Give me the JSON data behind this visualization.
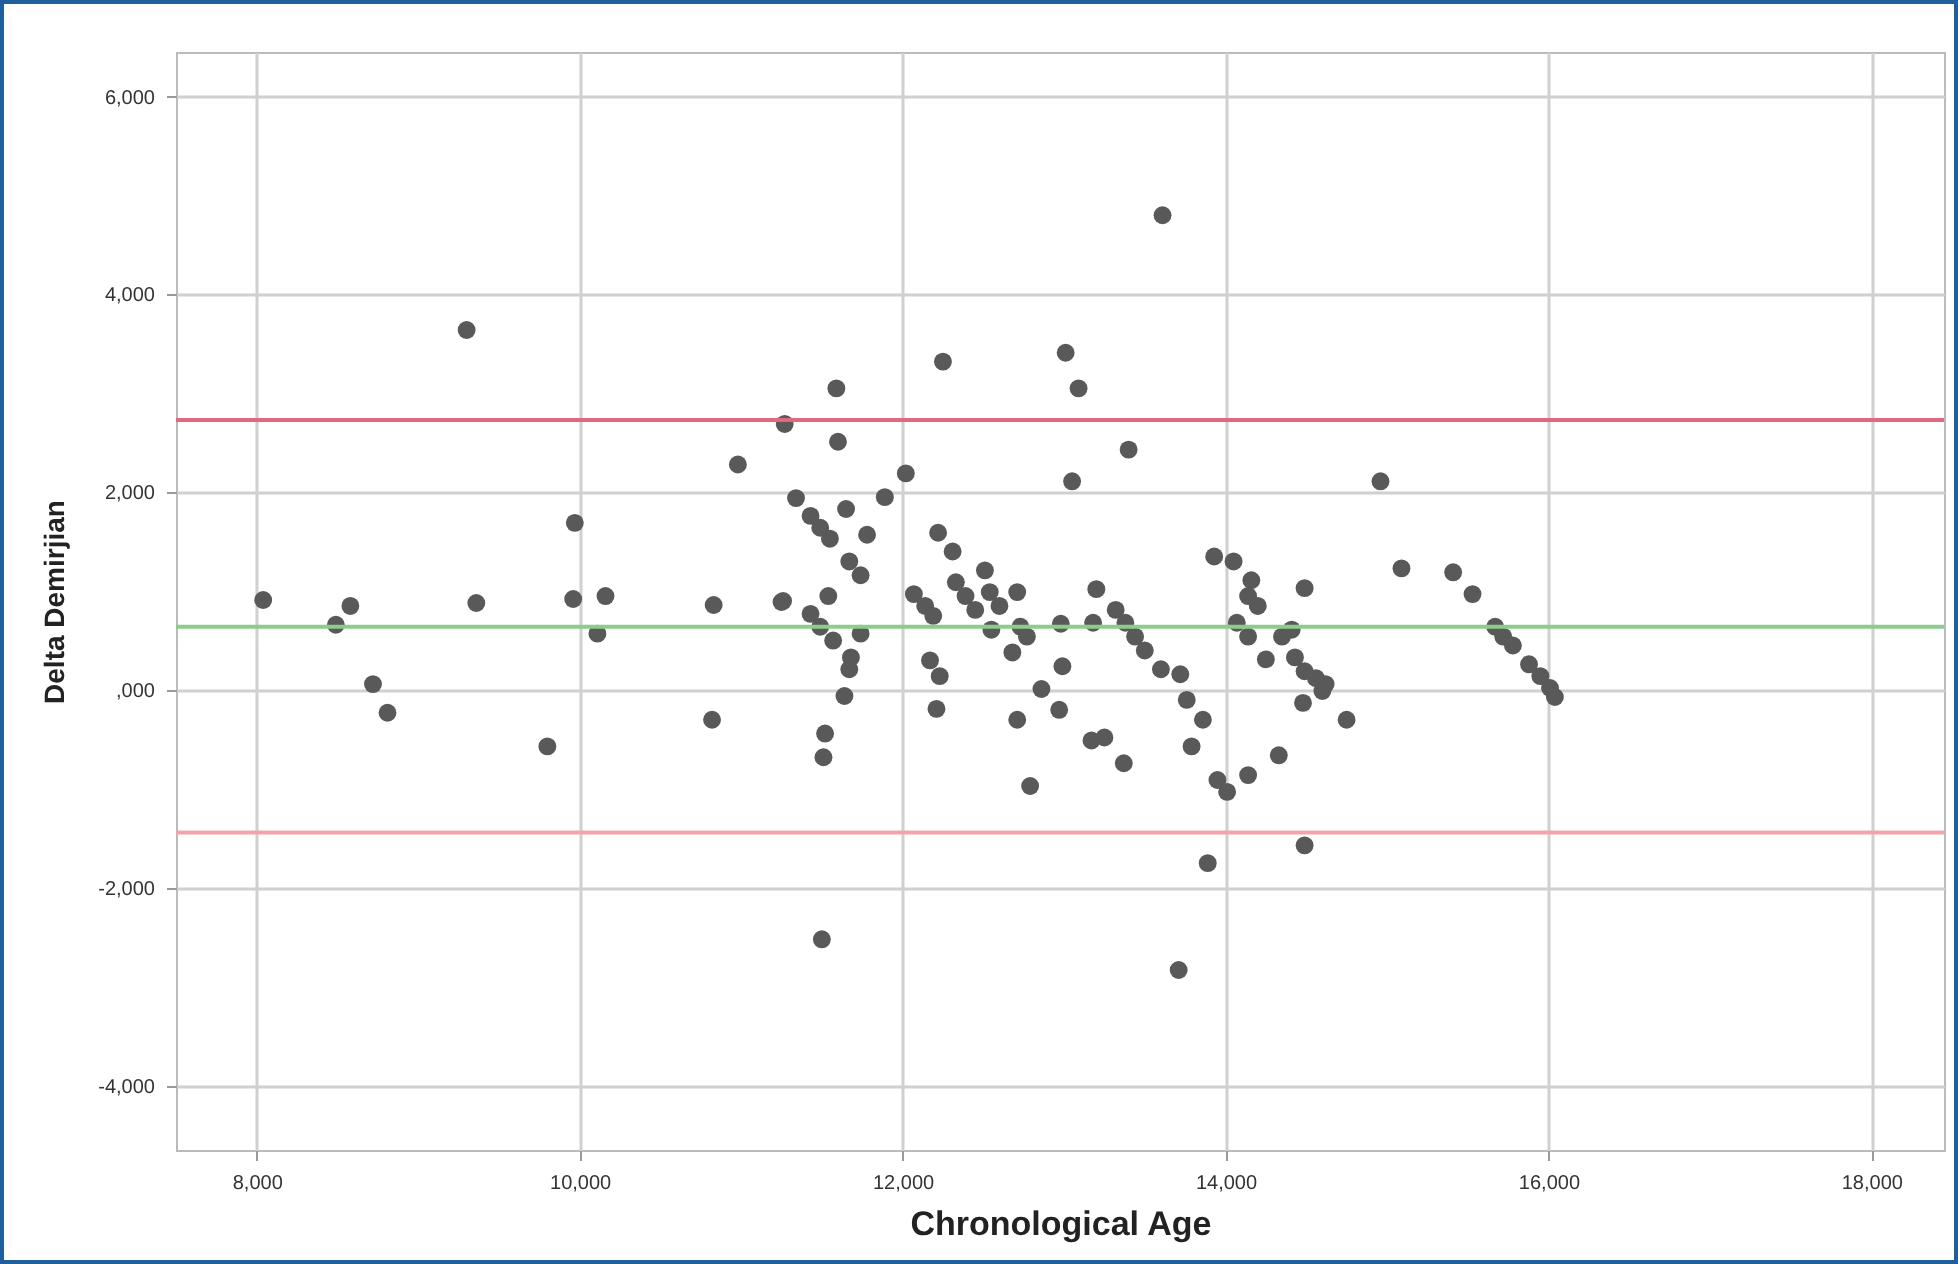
{
  "chart_data": {
    "type": "scatter",
    "xlabel": "Chronological Age",
    "ylabel": "Delta Demirjian",
    "xlim": [
      7500,
      18450
    ],
    "ylim": [
      -4650,
      6450
    ],
    "xticks": [
      {
        "value": 8000,
        "label": "8,000"
      },
      {
        "value": 10000,
        "label": "10,000"
      },
      {
        "value": 12000,
        "label": "12,000"
      },
      {
        "value": 14000,
        "label": "14,000"
      },
      {
        "value": 16000,
        "label": "16,000"
      },
      {
        "value": 18000,
        "label": "18,000"
      }
    ],
    "yticks": [
      {
        "value": -4000,
        "label": "-4,000"
      },
      {
        "value": -2000,
        "label": "-2,000"
      },
      {
        "value": 0,
        "label": ",000"
      },
      {
        "value": 2000,
        "label": "2,000"
      },
      {
        "value": 4000,
        "label": "4,000"
      },
      {
        "value": 6000,
        "label": "6,000"
      }
    ],
    "grid": true,
    "marker": "circle",
    "series": [
      {
        "color": "#595959",
        "x": [
          8040,
          8490,
          8580,
          8720,
          8810,
          9300,
          9360,
          9800,
          9970,
          9960,
          10160,
          10110,
          10830,
          10820,
          10980,
          11270,
          11250,
          11590,
          11600,
          11340,
          11430,
          11490,
          11550,
          11650,
          11780,
          11670,
          11740,
          11890,
          12020,
          11260,
          11540,
          11430,
          11490,
          11570,
          11740,
          11680,
          11670,
          11640,
          11520,
          11510,
          11500,
          12250,
          12220,
          12310,
          12510,
          12710,
          12070,
          12140,
          12190,
          12330,
          12390,
          12450,
          12540,
          12600,
          12550,
          12730,
          12770,
          12680,
          12980,
          12990,
          12170,
          12230,
          12210,
          12860,
          12970,
          12710,
          12790,
          13010,
          13090,
          13050,
          13610,
          13400,
          14960,
          13930,
          14050,
          14160,
          14140,
          14200,
          14490,
          14070,
          14140,
          13200,
          13180,
          13320,
          13380,
          13440,
          13500,
          13600,
          13720,
          13760,
          13860,
          13790,
          13950,
          14010,
          14140,
          13170,
          13250,
          13370,
          13890,
          13710,
          14490,
          14250,
          14350,
          14410,
          14430,
          14490,
          14560,
          14620,
          14600,
          14480,
          14750,
          14330,
          15090,
          15410,
          15530,
          15670,
          15720,
          15780,
          15880,
          15950,
          16010,
          16040
        ],
        "values": [
          910,
          660,
          850,
          60,
          -230,
          3640,
          880,
          -570,
          1690,
          920,
          950,
          570,
          860,
          -300,
          2280,
          2690,
          890,
          3050,
          2510,
          1940,
          1760,
          1640,
          1530,
          1830,
          1570,
          1300,
          1160,
          1950,
          2190,
          900,
          950,
          770,
          640,
          500,
          570,
          330,
          210,
          -60,
          -440,
          -680,
          -2520,
          3320,
          1590,
          1400,
          1210,
          990,
          970,
          850,
          750,
          1090,
          950,
          810,
          990,
          850,
          610,
          640,
          540,
          380,
          670,
          240,
          300,
          140,
          -190,
          10,
          -200,
          -300,
          -970,
          3410,
          3050,
          2110,
          4800,
          2430,
          2110,
          1350,
          1300,
          1110,
          950,
          850,
          1030,
          680,
          540,
          1020,
          680,
          810,
          680,
          540,
          400,
          210,
          160,
          -100,
          -300,
          -570,
          -910,
          -1030,
          -860,
          -510,
          -480,
          -740,
          -1750,
          -2830,
          -1570,
          310,
          540,
          610,
          330,
          190,
          120,
          60,
          -10,
          -130,
          -300,
          -660,
          1230,
          1190,
          970,
          640,
          540,
          450,
          260,
          140,
          20,
          -70
        ]
      }
    ],
    "ref_lines": [
      {
        "axis": "y",
        "value": 2730,
        "color": "#e0687f"
      },
      {
        "axis": "y",
        "value": 640,
        "color": "#8fcb8c"
      },
      {
        "axis": "y",
        "value": -1440,
        "color": "#f5a3aa"
      }
    ]
  }
}
